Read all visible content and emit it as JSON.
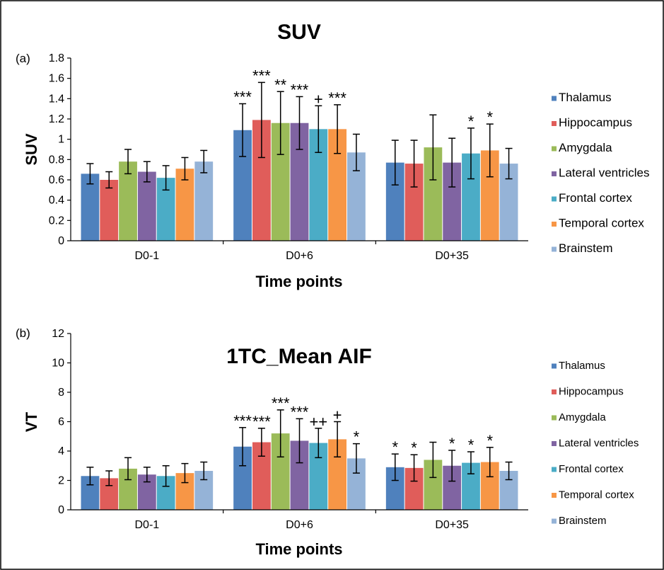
{
  "chart_data": [
    {
      "type": "bar",
      "panel_label": "(a)",
      "title": "SUV",
      "xlabel": "Time points",
      "ylabel": "SUV",
      "ylim": [
        0,
        1.8
      ],
      "yticks": [
        "0",
        "0.2",
        "0.4",
        "0.6",
        "0.8",
        "1",
        "1.2",
        "1.4",
        "1.6",
        "1.8"
      ],
      "categories": [
        "D0-1",
        "D0+6",
        "D0+35"
      ],
      "legend_position": "right",
      "series": [
        {
          "name": "Thalamus",
          "color": "#4f81bd",
          "values": [
            0.66,
            1.09,
            0.77
          ],
          "errors": [
            0.1,
            0.26,
            0.22
          ],
          "annotations": [
            "",
            "***",
            ""
          ]
        },
        {
          "name": "Hippocampus",
          "color": "#e05d5a",
          "values": [
            0.6,
            1.19,
            0.76
          ],
          "errors": [
            0.08,
            0.37,
            0.23
          ],
          "annotations": [
            "",
            "***",
            ""
          ]
        },
        {
          "name": "Amygdala",
          "color": "#9bbb59",
          "values": [
            0.78,
            1.16,
            0.92
          ],
          "errors": [
            0.12,
            0.31,
            0.32
          ],
          "annotations": [
            "",
            "**",
            ""
          ]
        },
        {
          "name": "Lateral ventricles",
          "color": "#8064a2",
          "values": [
            0.68,
            1.16,
            0.77
          ],
          "errors": [
            0.1,
            0.26,
            0.24
          ],
          "annotations": [
            "",
            "***",
            ""
          ]
        },
        {
          "name": "Frontal cortex",
          "color": "#4bacc6",
          "values": [
            0.62,
            1.1,
            0.86
          ],
          "errors": [
            0.12,
            0.23,
            0.25
          ],
          "annotations": [
            "",
            "+",
            "*"
          ]
        },
        {
          "name": "Temporal cortex",
          "color": "#f79646",
          "values": [
            0.71,
            1.1,
            0.89
          ],
          "errors": [
            0.11,
            0.24,
            0.26
          ],
          "annotations": [
            "",
            "***",
            "*"
          ]
        },
        {
          "name": "Brainstem",
          "color": "#95b3d7",
          "values": [
            0.78,
            0.87,
            0.76
          ],
          "errors": [
            0.11,
            0.18,
            0.15
          ],
          "annotations": [
            "",
            "",
            ""
          ]
        }
      ]
    },
    {
      "type": "bar",
      "panel_label": "(b)",
      "title": "1TC_Mean AIF",
      "xlabel": "Time points",
      "ylabel": "VT",
      "ylim": [
        0,
        12
      ],
      "yticks": [
        "0",
        "2",
        "4",
        "6",
        "8",
        "10",
        "12"
      ],
      "categories": [
        "D0-1",
        "D0+6",
        "D0+35"
      ],
      "legend_position": "right",
      "series": [
        {
          "name": "Thalamus",
          "color": "#4f81bd",
          "values": [
            2.3,
            4.3,
            2.9
          ],
          "errors": [
            0.6,
            1.3,
            0.9
          ],
          "annotations": [
            "",
            "***",
            "*"
          ]
        },
        {
          "name": "Hippocampus",
          "color": "#e05d5a",
          "values": [
            2.15,
            4.6,
            2.85
          ],
          "errors": [
            0.5,
            0.95,
            0.9
          ],
          "annotations": [
            "",
            "***",
            "*"
          ]
        },
        {
          "name": "Amygdala",
          "color": "#9bbb59",
          "values": [
            2.8,
            5.2,
            3.4
          ],
          "errors": [
            0.75,
            1.6,
            1.2
          ],
          "annotations": [
            "",
            "***",
            ""
          ]
        },
        {
          "name": "Lateral ventricles",
          "color": "#8064a2",
          "values": [
            2.4,
            4.7,
            3.0
          ],
          "errors": [
            0.5,
            1.5,
            1.05
          ],
          "annotations": [
            "",
            "***",
            "*"
          ]
        },
        {
          "name": "Frontal cortex",
          "color": "#4bacc6",
          "values": [
            2.3,
            4.55,
            3.2
          ],
          "errors": [
            0.7,
            1.0,
            0.75
          ],
          "annotations": [
            "",
            "++",
            "*"
          ]
        },
        {
          "name": "Temporal cortex",
          "color": "#f79646",
          "values": [
            2.5,
            4.8,
            3.25
          ],
          "errors": [
            0.65,
            1.2,
            1.0
          ],
          "annotations": [
            "",
            "+",
            "*"
          ]
        },
        {
          "name": "Brainstem",
          "color": "#95b3d7",
          "values": [
            2.65,
            3.5,
            2.65
          ],
          "errors": [
            0.6,
            1.0,
            0.6
          ],
          "annotations": [
            "",
            "*",
            ""
          ]
        }
      ]
    }
  ]
}
